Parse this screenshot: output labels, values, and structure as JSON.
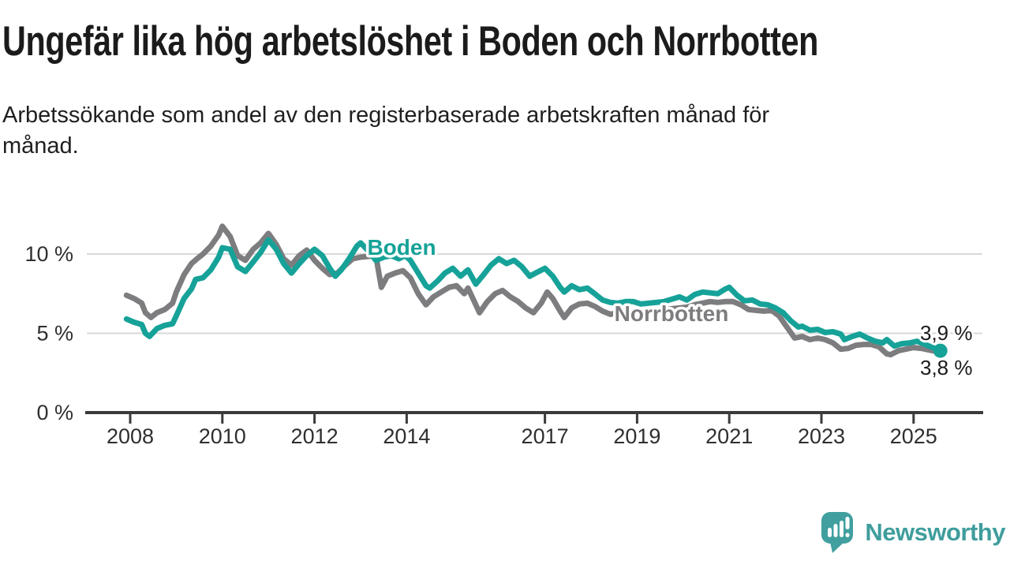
{
  "title": "Ungefär lika hög arbetslöshet i Boden och Norrbotten",
  "subtitle_lines": [
    "Arbetssökande som andel av den registerbaserade arbetskraften månad för",
    "månad."
  ],
  "brand": {
    "name": "Newsworthy"
  },
  "colors": {
    "boden": "#16a298",
    "norrbotten": "#7d7d80",
    "gridline": "#d9d9d9",
    "axis": "#3b3b3b",
    "tick_label": "#2f2f2f",
    "text": "#1b1b1b",
    "brand_teal": "#3f9d9d"
  },
  "chart_data": {
    "type": "line",
    "title": "Ungefär lika hög arbetslöshet i Boden och Norrbotten",
    "subtitle": "Arbetssökande som andel av den registerbaserade arbetskraften månad för månad.",
    "unit": "%",
    "xlim": [
      2007.9,
      2025.9
    ],
    "ylim": [
      0,
      12
    ],
    "grid": "horizontal",
    "legend": "inline-labels",
    "yticks": [
      {
        "value": 0,
        "label": "0 %"
      },
      {
        "value": 5,
        "label": "5 %"
      },
      {
        "value": 10,
        "label": "10 %"
      }
    ],
    "xticks": [
      {
        "value": 2008,
        "label": "2008"
      },
      {
        "value": 2010,
        "label": "2010"
      },
      {
        "value": 2012,
        "label": "2012"
      },
      {
        "value": 2014,
        "label": "2014"
      },
      {
        "value": 2017,
        "label": "2017"
      },
      {
        "value": 2019,
        "label": "2019"
      },
      {
        "value": 2021,
        "label": "2021"
      },
      {
        "value": 2023,
        "label": "2023"
      },
      {
        "value": 2025,
        "label": "2025"
      }
    ],
    "series": [
      {
        "name": "Norrbotten",
        "color": "#7d7d80",
        "inline_label": "Norrbotten",
        "end_label": "3,8 %",
        "end_value": 3.8,
        "end_marker": false,
        "points": [
          [
            2007.92,
            7.4
          ],
          [
            2008.08,
            7.2
          ],
          [
            2008.25,
            6.9
          ],
          [
            2008.33,
            6.3
          ],
          [
            2008.45,
            6.0
          ],
          [
            2008.58,
            6.3
          ],
          [
            2008.75,
            6.5
          ],
          [
            2008.92,
            6.9
          ],
          [
            2009.0,
            7.6
          ],
          [
            2009.17,
            8.7
          ],
          [
            2009.33,
            9.4
          ],
          [
            2009.45,
            9.7
          ],
          [
            2009.58,
            10.0
          ],
          [
            2009.75,
            10.5
          ],
          [
            2009.92,
            11.2
          ],
          [
            2010.0,
            11.75
          ],
          [
            2010.17,
            11.1
          ],
          [
            2010.33,
            9.9
          ],
          [
            2010.5,
            9.6
          ],
          [
            2010.67,
            10.3
          ],
          [
            2010.83,
            10.7
          ],
          [
            2011.0,
            11.3
          ],
          [
            2011.17,
            10.6
          ],
          [
            2011.33,
            9.7
          ],
          [
            2011.5,
            9.3
          ],
          [
            2011.67,
            9.9
          ],
          [
            2011.83,
            10.25
          ],
          [
            2012.0,
            9.6
          ],
          [
            2012.17,
            9.1
          ],
          [
            2012.33,
            8.7
          ],
          [
            2012.5,
            8.8
          ],
          [
            2012.67,
            9.3
          ],
          [
            2012.83,
            9.7
          ],
          [
            2013.0,
            9.8
          ],
          [
            2013.17,
            9.85
          ],
          [
            2013.33,
            9.9
          ],
          [
            2013.45,
            7.9
          ],
          [
            2013.58,
            8.6
          ],
          [
            2013.75,
            8.8
          ],
          [
            2013.92,
            8.95
          ],
          [
            2014.08,
            8.5
          ],
          [
            2014.25,
            7.5
          ],
          [
            2014.42,
            6.8
          ],
          [
            2014.58,
            7.3
          ],
          [
            2014.75,
            7.6
          ],
          [
            2014.92,
            7.9
          ],
          [
            2015.08,
            8.0
          ],
          [
            2015.25,
            7.5
          ],
          [
            2015.33,
            7.85
          ],
          [
            2015.5,
            6.8
          ],
          [
            2015.58,
            6.3
          ],
          [
            2015.75,
            7.0
          ],
          [
            2015.92,
            7.5
          ],
          [
            2016.08,
            7.7
          ],
          [
            2016.25,
            7.3
          ],
          [
            2016.42,
            7.0
          ],
          [
            2016.58,
            6.6
          ],
          [
            2016.75,
            6.3
          ],
          [
            2016.92,
            6.9
          ],
          [
            2017.05,
            7.6
          ],
          [
            2017.17,
            7.2
          ],
          [
            2017.33,
            6.4
          ],
          [
            2017.42,
            6.0
          ],
          [
            2017.58,
            6.6
          ],
          [
            2017.75,
            6.85
          ],
          [
            2017.92,
            6.9
          ],
          [
            2018.08,
            6.7
          ],
          [
            2018.25,
            6.4
          ],
          [
            2018.42,
            6.2
          ],
          [
            2018.58,
            6.3
          ],
          [
            2018.75,
            6.4
          ],
          [
            2018.92,
            6.35
          ],
          [
            2019.08,
            6.2
          ],
          [
            2019.25,
            6.3
          ],
          [
            2019.42,
            6.4
          ],
          [
            2019.58,
            6.5
          ],
          [
            2019.75,
            6.55
          ],
          [
            2019.92,
            6.6
          ],
          [
            2020.08,
            6.65
          ],
          [
            2020.25,
            6.8
          ],
          [
            2020.42,
            6.9
          ],
          [
            2020.58,
            7.0
          ],
          [
            2020.75,
            6.95
          ],
          [
            2020.92,
            7.0
          ],
          [
            2021.08,
            7.0
          ],
          [
            2021.25,
            6.8
          ],
          [
            2021.42,
            6.5
          ],
          [
            2021.58,
            6.45
          ],
          [
            2021.75,
            6.4
          ],
          [
            2021.92,
            6.45
          ],
          [
            2022.08,
            6.1
          ],
          [
            2022.25,
            5.4
          ],
          [
            2022.42,
            4.7
          ],
          [
            2022.58,
            4.8
          ],
          [
            2022.75,
            4.6
          ],
          [
            2022.92,
            4.7
          ],
          [
            2023.08,
            4.6
          ],
          [
            2023.25,
            4.4
          ],
          [
            2023.42,
            4.0
          ],
          [
            2023.58,
            4.05
          ],
          [
            2023.75,
            4.25
          ],
          [
            2023.92,
            4.3
          ],
          [
            2024.08,
            4.3
          ],
          [
            2024.25,
            4.15
          ],
          [
            2024.42,
            3.7
          ],
          [
            2024.5,
            3.65
          ],
          [
            2024.67,
            3.9
          ],
          [
            2024.83,
            4.0
          ],
          [
            2025.0,
            4.1
          ],
          [
            2025.17,
            4.05
          ],
          [
            2025.33,
            3.95
          ],
          [
            2025.5,
            3.85
          ],
          [
            2025.6,
            3.8
          ]
        ]
      },
      {
        "name": "Boden",
        "color": "#16a298",
        "inline_label": "Boden",
        "end_label": "3,9 %",
        "end_value": 3.9,
        "end_marker": true,
        "points": [
          [
            2007.92,
            5.9
          ],
          [
            2008.08,
            5.7
          ],
          [
            2008.25,
            5.55
          ],
          [
            2008.33,
            5.0
          ],
          [
            2008.42,
            4.8
          ],
          [
            2008.58,
            5.3
          ],
          [
            2008.75,
            5.5
          ],
          [
            2008.92,
            5.6
          ],
          [
            2009.0,
            6.1
          ],
          [
            2009.17,
            7.2
          ],
          [
            2009.33,
            7.8
          ],
          [
            2009.42,
            8.4
          ],
          [
            2009.58,
            8.5
          ],
          [
            2009.75,
            9.0
          ],
          [
            2009.92,
            9.8
          ],
          [
            2010.0,
            10.4
          ],
          [
            2010.17,
            10.3
          ],
          [
            2010.33,
            9.2
          ],
          [
            2010.5,
            8.9
          ],
          [
            2010.67,
            9.5
          ],
          [
            2010.83,
            10.1
          ],
          [
            2011.0,
            10.9
          ],
          [
            2011.17,
            10.3
          ],
          [
            2011.33,
            9.4
          ],
          [
            2011.5,
            8.8
          ],
          [
            2011.67,
            9.4
          ],
          [
            2011.83,
            9.9
          ],
          [
            2012.0,
            10.3
          ],
          [
            2012.17,
            9.9
          ],
          [
            2012.33,
            9.1
          ],
          [
            2012.45,
            8.6
          ],
          [
            2012.58,
            9.0
          ],
          [
            2012.75,
            9.7
          ],
          [
            2012.92,
            10.5
          ],
          [
            2013.0,
            10.7
          ],
          [
            2013.17,
            10.2
          ],
          [
            2013.33,
            9.6
          ],
          [
            2013.5,
            9.8
          ],
          [
            2013.67,
            9.9
          ],
          [
            2013.83,
            9.7
          ],
          [
            2013.97,
            9.9
          ],
          [
            2014.08,
            9.6
          ],
          [
            2014.25,
            8.8
          ],
          [
            2014.42,
            8.0
          ],
          [
            2014.5,
            7.85
          ],
          [
            2014.67,
            8.3
          ],
          [
            2014.83,
            8.8
          ],
          [
            2015.0,
            9.1
          ],
          [
            2015.17,
            8.6
          ],
          [
            2015.33,
            9.0
          ],
          [
            2015.5,
            8.1
          ],
          [
            2015.67,
            8.7
          ],
          [
            2015.83,
            9.3
          ],
          [
            2016.0,
            9.7
          ],
          [
            2016.17,
            9.4
          ],
          [
            2016.33,
            9.6
          ],
          [
            2016.5,
            9.2
          ],
          [
            2016.67,
            8.6
          ],
          [
            2016.83,
            8.85
          ],
          [
            2017.0,
            9.1
          ],
          [
            2017.17,
            8.6
          ],
          [
            2017.33,
            7.9
          ],
          [
            2017.42,
            7.6
          ],
          [
            2017.58,
            8.0
          ],
          [
            2017.75,
            7.75
          ],
          [
            2017.92,
            7.85
          ],
          [
            2018.08,
            7.5
          ],
          [
            2018.25,
            7.1
          ],
          [
            2018.42,
            6.95
          ],
          [
            2018.58,
            6.9
          ],
          [
            2018.75,
            7.0
          ],
          [
            2018.92,
            7.0
          ],
          [
            2019.08,
            6.85
          ],
          [
            2019.25,
            6.9
          ],
          [
            2019.42,
            6.95
          ],
          [
            2019.58,
            7.0
          ],
          [
            2019.75,
            7.15
          ],
          [
            2019.92,
            7.3
          ],
          [
            2020.08,
            7.1
          ],
          [
            2020.25,
            7.45
          ],
          [
            2020.42,
            7.6
          ],
          [
            2020.58,
            7.55
          ],
          [
            2020.75,
            7.5
          ],
          [
            2020.92,
            7.8
          ],
          [
            2021.0,
            7.9
          ],
          [
            2021.17,
            7.4
          ],
          [
            2021.33,
            7.05
          ],
          [
            2021.5,
            7.1
          ],
          [
            2021.67,
            6.85
          ],
          [
            2021.83,
            6.8
          ],
          [
            2022.0,
            6.6
          ],
          [
            2022.17,
            6.3
          ],
          [
            2022.33,
            5.8
          ],
          [
            2022.5,
            5.4
          ],
          [
            2022.58,
            5.45
          ],
          [
            2022.75,
            5.2
          ],
          [
            2022.92,
            5.25
          ],
          [
            2023.08,
            5.05
          ],
          [
            2023.25,
            5.1
          ],
          [
            2023.42,
            4.95
          ],
          [
            2023.5,
            4.6
          ],
          [
            2023.67,
            4.8
          ],
          [
            2023.83,
            4.95
          ],
          [
            2024.0,
            4.7
          ],
          [
            2024.17,
            4.5
          ],
          [
            2024.33,
            4.4
          ],
          [
            2024.42,
            4.6
          ],
          [
            2024.58,
            4.2
          ],
          [
            2024.75,
            4.35
          ],
          [
            2024.92,
            4.4
          ],
          [
            2025.08,
            4.5
          ],
          [
            2025.25,
            4.3
          ],
          [
            2025.42,
            4.1
          ],
          [
            2025.58,
            3.9
          ]
        ]
      }
    ]
  }
}
